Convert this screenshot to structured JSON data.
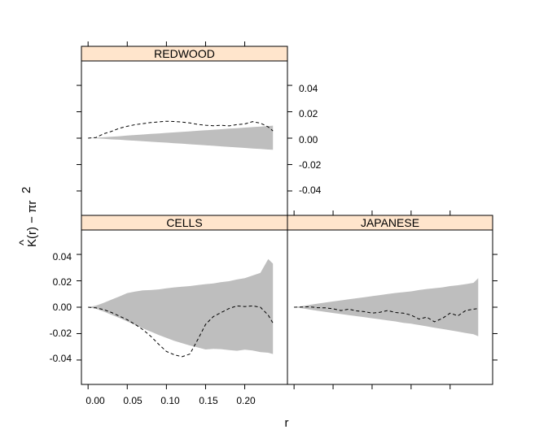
{
  "chart_data": {
    "type": "area",
    "xlabel": "r",
    "ylabel_text": "K(r) − πr",
    "ylabel_hat": "^",
    "ylabel_sup": "2",
    "x_ticks": [
      "0.00",
      "0.05",
      "0.10",
      "0.15",
      "0.20"
    ],
    "y_ticks": [
      "0.04",
      "0.02",
      "0.00",
      "-0.02",
      "-0.04"
    ],
    "xlim": [
      -0.0085,
      0.2545
    ],
    "ylim": [
      -0.0585,
      0.0585
    ],
    "colors": {
      "envelope": "#bebebe",
      "strip": "#ffe5cc",
      "line": "#000000"
    },
    "panels": [
      {
        "name": "REDWOOD",
        "r": [
          0.0,
          0.01,
          0.02,
          0.03,
          0.04,
          0.05,
          0.06,
          0.07,
          0.08,
          0.09,
          0.1,
          0.11,
          0.12,
          0.13,
          0.14,
          0.15,
          0.16,
          0.17,
          0.18,
          0.19,
          0.2,
          0.21,
          0.22,
          0.23,
          0.236
        ],
        "upper": [
          0.0,
          0.0003,
          0.0007,
          0.0011,
          0.0015,
          0.002,
          0.0024,
          0.0028,
          0.0032,
          0.0036,
          0.004,
          0.0044,
          0.0048,
          0.0052,
          0.0056,
          0.006,
          0.0064,
          0.0068,
          0.0072,
          0.0076,
          0.008,
          0.0084,
          0.0088,
          0.0092,
          0.0095
        ],
        "lower": [
          0.0,
          -0.0002,
          -0.0005,
          -0.0009,
          -0.0012,
          -0.0016,
          -0.0019,
          -0.0023,
          -0.0027,
          -0.0031,
          -0.0034,
          -0.0038,
          -0.0042,
          -0.0046,
          -0.005,
          -0.0054,
          -0.0058,
          -0.0062,
          -0.0066,
          -0.007,
          -0.0074,
          -0.0078,
          -0.0082,
          -0.0086,
          -0.0088
        ],
        "observed": [
          0.0,
          0.0005,
          0.0033,
          0.0052,
          0.0075,
          0.009,
          0.0102,
          0.011,
          0.0118,
          0.0123,
          0.0128,
          0.0126,
          0.0122,
          0.0115,
          0.0104,
          0.0098,
          0.0094,
          0.0097,
          0.0093,
          0.0103,
          0.0108,
          0.0125,
          0.0114,
          0.0085,
          0.0055
        ]
      },
      {
        "name": "CELLS",
        "r": [
          0.0,
          0.01,
          0.02,
          0.03,
          0.04,
          0.05,
          0.06,
          0.07,
          0.08,
          0.09,
          0.1,
          0.11,
          0.12,
          0.13,
          0.14,
          0.15,
          0.16,
          0.17,
          0.18,
          0.19,
          0.2,
          0.21,
          0.22,
          0.23,
          0.236
        ],
        "upper": [
          0.0,
          0.0012,
          0.0033,
          0.0058,
          0.0082,
          0.0107,
          0.0118,
          0.0128,
          0.013,
          0.0135,
          0.0143,
          0.015,
          0.0155,
          0.016,
          0.0168,
          0.0175,
          0.018,
          0.019,
          0.0197,
          0.021,
          0.022,
          0.024,
          0.026,
          0.0365,
          0.033
        ],
        "lower": [
          0.0,
          -0.0012,
          -0.0033,
          -0.0058,
          -0.0082,
          -0.0108,
          -0.0135,
          -0.016,
          -0.0185,
          -0.021,
          -0.0233,
          -0.0255,
          -0.0272,
          -0.029,
          -0.0305,
          -0.032,
          -0.0315,
          -0.0318,
          -0.0325,
          -0.033,
          -0.0322,
          -0.0328,
          -0.034,
          -0.0345,
          -0.0355
        ],
        "observed": [
          0.0,
          -0.0005,
          -0.0018,
          -0.004,
          -0.0068,
          -0.0095,
          -0.013,
          -0.017,
          -0.022,
          -0.028,
          -0.0335,
          -0.036,
          -0.0375,
          -0.0355,
          -0.0245,
          -0.013,
          -0.007,
          -0.004,
          -0.001,
          0.001,
          0.0005,
          0.001,
          0.0,
          -0.006,
          -0.012
        ]
      },
      {
        "name": "JAPANESE",
        "r": [
          0.0,
          0.01,
          0.02,
          0.03,
          0.04,
          0.05,
          0.06,
          0.07,
          0.08,
          0.09,
          0.1,
          0.11,
          0.12,
          0.13,
          0.14,
          0.15,
          0.16,
          0.17,
          0.18,
          0.19,
          0.2,
          0.21,
          0.22,
          0.23,
          0.236
        ],
        "upper": [
          0.0,
          0.0008,
          0.0018,
          0.0027,
          0.0036,
          0.0044,
          0.0052,
          0.006,
          0.0068,
          0.0076,
          0.0084,
          0.0092,
          0.01,
          0.0108,
          0.0114,
          0.012,
          0.013,
          0.0138,
          0.0144,
          0.015,
          0.016,
          0.0166,
          0.0175,
          0.0185,
          0.022
        ],
        "lower": [
          0.0,
          -0.0008,
          -0.0018,
          -0.0027,
          -0.0036,
          -0.0044,
          -0.0052,
          -0.006,
          -0.0068,
          -0.0076,
          -0.0084,
          -0.0092,
          -0.01,
          -0.0108,
          -0.0118,
          -0.0125,
          -0.0135,
          -0.0145,
          -0.0155,
          -0.0165,
          -0.0175,
          -0.0185,
          -0.0195,
          -0.0205,
          -0.022
        ],
        "observed": [
          0.0,
          0.0001,
          0.0003,
          -0.0004,
          -0.0005,
          -0.0012,
          -0.0025,
          -0.0015,
          -0.0028,
          -0.0033,
          -0.0045,
          -0.0038,
          -0.0025,
          -0.004,
          -0.0045,
          -0.006,
          -0.009,
          -0.0075,
          -0.011,
          -0.0085,
          -0.0045,
          -0.0065,
          -0.0025,
          -0.0015,
          -0.001
        ]
      }
    ]
  }
}
